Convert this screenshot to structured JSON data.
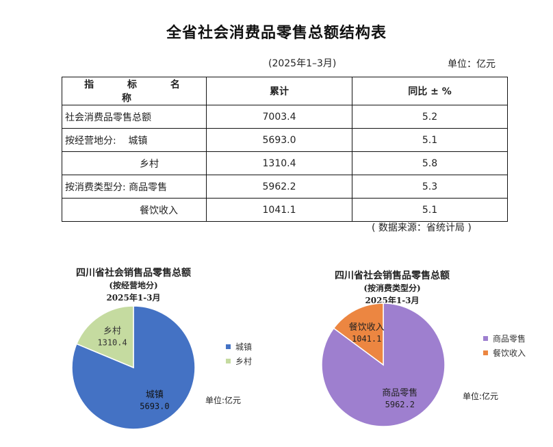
{
  "document": {
    "title": "全省社会消费品零售总额结构表",
    "period": "(2025年1–3月)",
    "unit": "单位：亿元",
    "source": "( 数据来源：省统计局 )"
  },
  "table": {
    "headers": [
      "指 标 名 称",
      "累计",
      "同比 ± %"
    ],
    "rows": [
      {
        "name": "社会消费品零售总额",
        "cumulative": "7003.4",
        "yoy": "5.2"
      },
      {
        "name": "按经营地分:    城镇",
        "cumulative": "5693.0",
        "yoy": "5.1"
      },
      {
        "name": "乡村",
        "cumulative": "1310.4",
        "yoy": "5.8"
      },
      {
        "name": "按消费类型分: 商品零售",
        "cumulative": "5962.2",
        "yoy": "5.3"
      },
      {
        "name": "餐饮收入",
        "cumulative": "1041.1",
        "yoy": "5.1"
      }
    ]
  },
  "chart_data": [
    {
      "type": "pie",
      "title": "四川省社会销售品零售总额",
      "subtitle": "(按经营地分)",
      "period": "2025年1-3月",
      "unit": "单位:亿元",
      "legend_position": "right",
      "slices": [
        {
          "label": "城镇",
          "value": 5693.0,
          "value_label": "5693.0",
          "color": "#4472c4"
        },
        {
          "label": "乡村",
          "value": 1310.4,
          "value_label": "1310.4",
          "color": "#c5dba0"
        }
      ]
    },
    {
      "type": "pie",
      "title": "四川省社会销售品零售总额",
      "subtitle": "(按消费类型分)",
      "period": "2025年1-3月",
      "unit": "单位:亿元",
      "legend_position": "right",
      "slices": [
        {
          "label": "商品零售",
          "value": 5962.2,
          "value_label": "5962.2",
          "color": "#9e7fcf"
        },
        {
          "label": "餐饮收入",
          "value": 1041.1,
          "value_label": "1041.1",
          "color": "#ec8641"
        }
      ]
    }
  ]
}
